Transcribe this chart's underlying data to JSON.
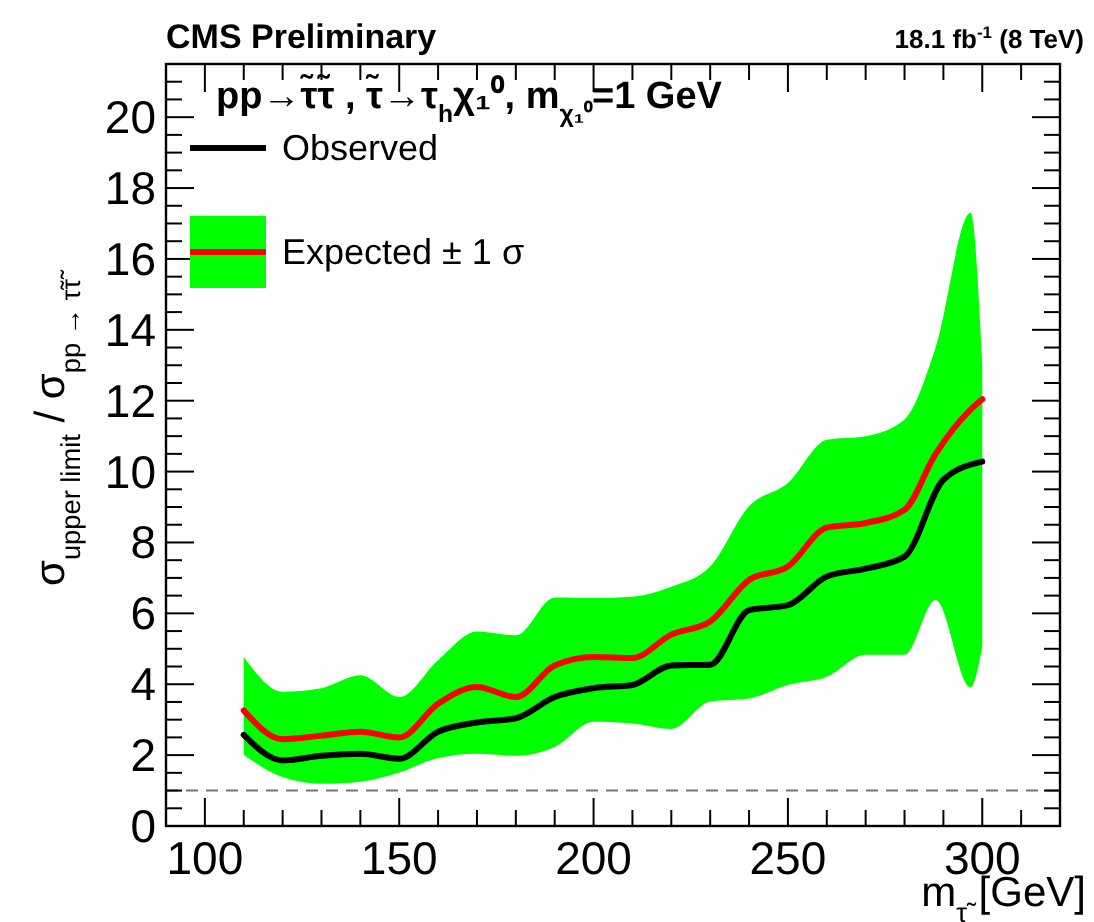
{
  "chart_data": {
    "type": "line",
    "title": "CMS Preliminary",
    "subtitle": "18.1 fb$^{-1}$ (8 TeV)",
    "annotations": [
      "pp→τ̃τ̃ , τ̃→τ$_{h}$χ₁⁰, m$_{χ₁⁰}$=1 GeV"
    ],
    "xlabel": "m$_{τ̃}$ [GeV]",
    "ylabel": "σ$_{upper limit}$ / σ$_{pp → τ̃τ̃}$",
    "xlim": [
      90,
      320
    ],
    "ylim": [
      0,
      21.5
    ],
    "xticks": [
      {
        "value": 90,
        "label": null
      },
      100,
      {
        "value": 110,
        "label": null
      },
      {
        "value": 120,
        "label": null
      },
      {
        "value": 130,
        "label": null
      },
      {
        "value": 140,
        "label": null
      },
      150,
      {
        "value": 160,
        "label": null
      },
      {
        "value": 170,
        "label": null
      },
      {
        "value": 180,
        "label": null
      },
      {
        "value": 190,
        "label": null
      },
      200,
      {
        "value": 210,
        "label": null
      },
      {
        "value": 220,
        "label": null
      },
      {
        "value": 230,
        "label": null
      },
      {
        "value": 240,
        "label": null
      },
      250,
      {
        "value": 260,
        "label": null
      },
      {
        "value": 270,
        "label": null
      },
      {
        "value": 280,
        "label": null
      },
      {
        "value": 290,
        "label": null
      },
      300,
      {
        "value": 310,
        "label": null
      }
    ],
    "yticks": [
      0,
      {
        "value": 0.5,
        "label": null
      },
      {
        "value": 1,
        "label": null
      },
      {
        "value": 1.5,
        "label": null
      },
      2,
      {
        "value": 2.5,
        "label": null
      },
      {
        "value": 3,
        "label": null
      },
      {
        "value": 3.5,
        "label": null
      },
      4,
      {
        "value": 4.5,
        "label": null
      },
      {
        "value": 5,
        "label": null
      },
      {
        "value": 5.5,
        "label": null
      },
      6,
      {
        "value": 6.5,
        "label": null
      },
      {
        "value": 7,
        "label": null
      },
      {
        "value": 7.5,
        "label": null
      },
      8,
      {
        "value": 8.5,
        "label": null
      },
      {
        "value": 9,
        "label": null
      },
      {
        "value": 9.5,
        "label": null
      },
      10,
      {
        "value": 10.5,
        "label": null
      },
      {
        "value": 11,
        "label": null
      },
      {
        "value": 11.5,
        "label": null
      },
      12,
      {
        "value": 12.5,
        "label": null
      },
      {
        "value": 13,
        "label": null
      },
      {
        "value": 13.5,
        "label": null
      },
      14,
      {
        "value": 14.5,
        "label": null
      },
      {
        "value": 15,
        "label": null
      },
      {
        "value": 15.5,
        "label": null
      },
      16,
      {
        "value": 16.5,
        "label": null
      },
      {
        "value": 17,
        "label": null
      },
      {
        "value": 17.5,
        "label": null
      },
      18,
      {
        "value": 18.5,
        "label": null
      },
      {
        "value": 19,
        "label": null
      },
      {
        "value": 19.5,
        "label": null
      },
      20,
      {
        "value": 20.5,
        "label": null
      },
      {
        "value": 21,
        "label": null
      }
    ],
    "grid": false,
    "legend": "top left",
    "marker": "none",
    "line_style": "solid",
    "ref_lines": [
      {
        "axis": "y",
        "value": 1,
        "label": null,
        "color": "#777777",
        "line_style": "dashed"
      }
    ],
    "series": [
      {
        "name": "Expected ± 1 σ",
        "color": "#ff0000",
        "x": [
          110,
          120,
          130,
          140,
          150,
          160,
          170,
          180,
          190,
          200,
          210,
          220,
          230,
          240,
          250,
          260,
          270,
          280,
          288,
          297,
          300
        ],
        "values": [
          3.26,
          2.45,
          2.55,
          2.66,
          2.5,
          3.45,
          3.92,
          3.64,
          4.53,
          4.77,
          4.74,
          5.4,
          5.77,
          6.94,
          7.32,
          8.42,
          8.55,
          8.92,
          10.5,
          11.75,
          12.04
        ],
        "lower": [
          2.0,
          1.38,
          1.19,
          1.25,
          1.51,
          1.92,
          2.04,
          1.98,
          2.23,
          2.94,
          2.89,
          2.74,
          3.51,
          3.6,
          3.98,
          4.21,
          4.83,
          4.83,
          6.38,
          3.92,
          5.06
        ],
        "upper": [
          4.77,
          3.79,
          3.89,
          4.25,
          3.64,
          4.68,
          5.49,
          5.38,
          6.45,
          6.43,
          6.47,
          6.75,
          7.32,
          9.02,
          9.68,
          10.9,
          11.0,
          11.47,
          13.5,
          17.3,
          13.0
        ]
      },
      {
        "name": "Observed",
        "color": "#000000",
        "x": [
          110,
          120,
          130,
          140,
          150,
          160,
          170,
          180,
          190,
          200,
          210,
          220,
          230,
          240,
          250,
          260,
          270,
          280,
          290,
          300
        ],
        "values": [
          2.57,
          1.85,
          1.98,
          2.04,
          1.9,
          2.66,
          2.92,
          3.04,
          3.64,
          3.89,
          3.98,
          4.53,
          4.55,
          6.09,
          6.23,
          7.04,
          7.26,
          7.6,
          9.77,
          10.28
        ]
      }
    ]
  }
}
